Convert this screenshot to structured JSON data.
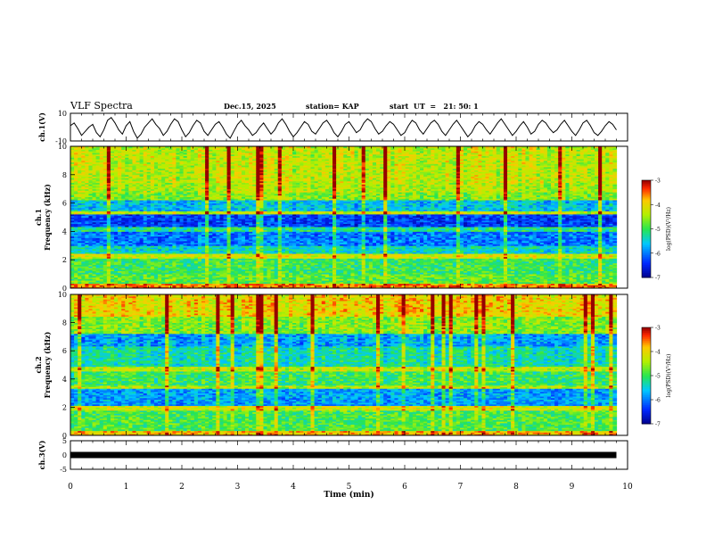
{
  "header": {
    "title": "VLF Spectra",
    "date": "Dec.15, 2025",
    "station": "station= KAP",
    "start": "start  UT  =   21: 50: 1"
  },
  "chart_data": [
    {
      "type": "line",
      "name": "ch1-waveform",
      "ylabel": "ch.1(V)",
      "ylim": [
        -10,
        10
      ],
      "yticks": [
        "10",
        "-10"
      ],
      "xlim": [
        0,
        9.8
      ],
      "series": [
        {
          "name": "ch.1",
          "values_description_only": false,
          "values": [
            1,
            3,
            -1,
            -6,
            -3,
            0,
            2,
            -4,
            -7,
            -2,
            5,
            7,
            3,
            -2,
            -5,
            1,
            4,
            -3,
            -8,
            -5,
            0,
            3,
            6,
            2,
            -1,
            -6,
            -3,
            2,
            6,
            4,
            -2,
            -7,
            -4,
            1,
            5,
            3,
            -3,
            -6,
            -2,
            2,
            4,
            0,
            -5,
            -8,
            -3,
            2,
            5,
            1,
            -2,
            -6,
            -4,
            0,
            3,
            -1,
            -5,
            -2,
            3,
            6,
            2,
            -3,
            -7,
            -4,
            0,
            4,
            2,
            -3,
            -5,
            -1,
            3,
            5,
            1,
            -4,
            -7,
            -3,
            2,
            4,
            0,
            -4,
            -2,
            3,
            6,
            4,
            -1,
            -5,
            -3,
            1,
            4,
            2,
            -2,
            -6,
            -4,
            1,
            5,
            3,
            -2,
            -5,
            -1,
            3,
            5,
            2,
            -3,
            -6,
            -2,
            2,
            5,
            1,
            -3,
            -7,
            -4,
            1,
            4,
            2,
            -2,
            -5,
            -1,
            3,
            6,
            2,
            -2,
            -6,
            -3,
            1,
            4,
            0,
            -5,
            -3,
            2,
            5,
            3,
            -1,
            -4,
            -2,
            2,
            5,
            1,
            -3,
            -6,
            -2,
            3,
            5,
            1,
            -4,
            -6,
            -3,
            1,
            4,
            2,
            -2
          ]
        }
      ]
    },
    {
      "type": "heatmap",
      "name": "ch1-spectrogram",
      "ylabel": "Frequency  (kHz)",
      "channel_label": "ch.1",
      "ylim": [
        0,
        10
      ],
      "yticks": [
        "0",
        "2",
        "4",
        "6",
        "8",
        "10"
      ],
      "colorbar": {
        "label": "log(PSD)(V²/Hz)",
        "ticks": [
          "-3",
          "-4",
          "-5",
          "-6",
          "-7"
        ],
        "range": [
          -7,
          -3
        ]
      },
      "bands": [
        {
          "f0": 0.0,
          "f1": 0.3,
          "level": -3.6
        },
        {
          "f0": 0.3,
          "f1": 1.0,
          "level": -4.8
        },
        {
          "f0": 1.0,
          "f1": 2.1,
          "level": -5.0
        },
        {
          "f0": 2.1,
          "f1": 2.4,
          "level": -4.2
        },
        {
          "f0": 2.4,
          "f1": 3.0,
          "level": -5.4
        },
        {
          "f0": 3.0,
          "f1": 4.0,
          "level": -6.0
        },
        {
          "f0": 4.0,
          "f1": 4.3,
          "level": -5.2
        },
        {
          "f0": 4.3,
          "f1": 5.2,
          "level": -6.3
        },
        {
          "f0": 5.2,
          "f1": 5.5,
          "level": -4.3
        },
        {
          "f0": 5.5,
          "f1": 6.2,
          "level": -5.6
        },
        {
          "f0": 6.2,
          "f1": 6.8,
          "level": -4.6
        },
        {
          "f0": 6.8,
          "f1": 7.4,
          "level": -4.4
        },
        {
          "f0": 7.4,
          "f1": 10.0,
          "level": -4.3
        }
      ]
    },
    {
      "type": "heatmap",
      "name": "ch2-spectrogram",
      "ylabel": "Frequency  (kHz)",
      "channel_label": "ch.2",
      "ylim": [
        0,
        10
      ],
      "yticks": [
        "0",
        "2",
        "4",
        "6",
        "8",
        "10"
      ],
      "colorbar": {
        "label": "log(PSD)(V²/Hz)",
        "ticks": [
          "-3",
          "-4",
          "-5",
          "-6",
          "-7"
        ],
        "range": [
          -7,
          -3
        ]
      },
      "bands": [
        {
          "f0": 0.0,
          "f1": 0.3,
          "level": -3.8
        },
        {
          "f0": 0.3,
          "f1": 1.8,
          "level": -4.9
        },
        {
          "f0": 1.8,
          "f1": 2.1,
          "level": -4.2
        },
        {
          "f0": 2.1,
          "f1": 3.3,
          "level": -5.8
        },
        {
          "f0": 3.3,
          "f1": 3.6,
          "level": -4.4
        },
        {
          "f0": 3.6,
          "f1": 4.6,
          "level": -5.0
        },
        {
          "f0": 4.6,
          "f1": 4.9,
          "level": -4.3
        },
        {
          "f0": 4.9,
          "f1": 6.3,
          "level": -5.3
        },
        {
          "f0": 6.3,
          "f1": 7.2,
          "level": -5.8
        },
        {
          "f0": 7.2,
          "f1": 8.4,
          "level": -4.6
        },
        {
          "f0": 8.4,
          "f1": 10.0,
          "level": -4.0
        }
      ]
    },
    {
      "type": "line",
      "name": "ch3-waveform",
      "ylabel": "ch.3(V)",
      "ylim": [
        -5,
        5
      ],
      "yticks": [
        "5",
        "0",
        "-5"
      ],
      "series": [
        {
          "name": "ch.3",
          "level": 0
        }
      ]
    }
  ],
  "xaxis": {
    "label": "Time  (min)",
    "ticks": [
      "0",
      "1",
      "2",
      "3",
      "4",
      "5",
      "6",
      "7",
      "8",
      "9",
      "10"
    ],
    "range": [
      0,
      10
    ],
    "data_end": 9.8
  },
  "colors": {
    "frame": "#000000",
    "trace": "#000000"
  }
}
